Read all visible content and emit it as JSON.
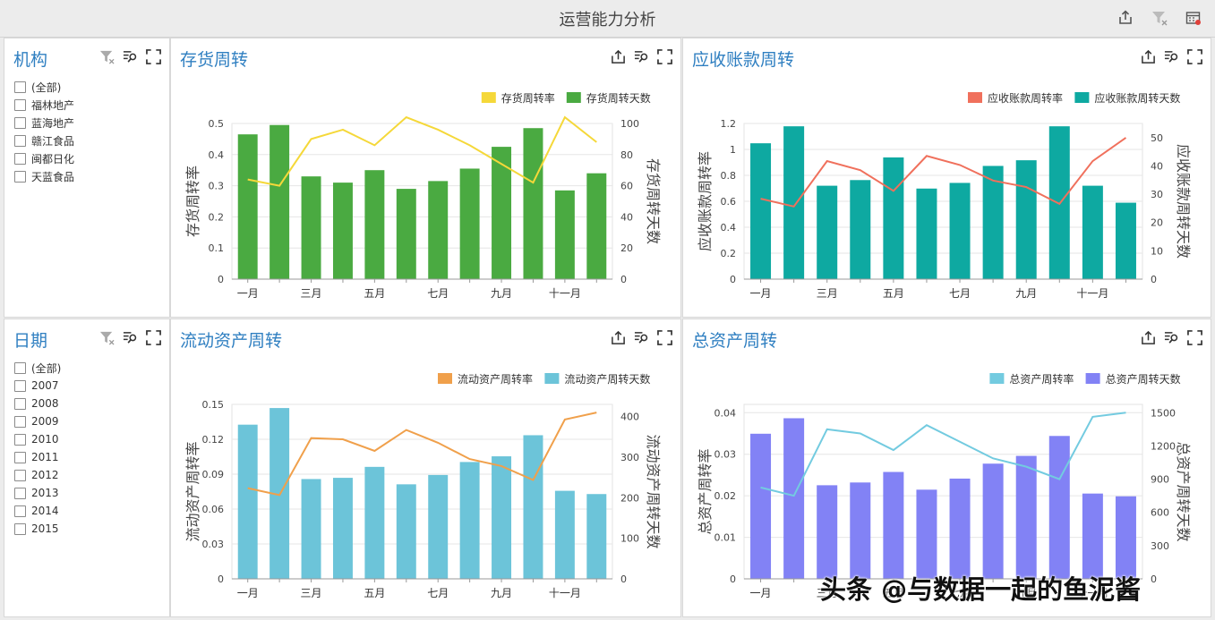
{
  "app": {
    "title": "运营能力分析"
  },
  "filters": [
    {
      "title": "机构",
      "items": [
        "(全部)",
        "福林地产",
        "蓝海地产",
        "赣江食品",
        "闽都日化",
        "天蓝食品"
      ]
    },
    {
      "title": "日期",
      "items": [
        "(全部)",
        "2007",
        "2008",
        "2009",
        "2010",
        "2011",
        "2012",
        "2013",
        "2014",
        "2015"
      ]
    }
  ],
  "watermark": "头条 @与数据一起的鱼泥酱",
  "chart_data": [
    {
      "type": "bar",
      "title": "存货周转",
      "categories": [
        "一月",
        "二月",
        "三月",
        "四月",
        "五月",
        "六月",
        "七月",
        "八月",
        "九月",
        "十月",
        "十一月",
        "十二月"
      ],
      "tick_labels": [
        "一月",
        "",
        "三月",
        "",
        "五月",
        "",
        "七月",
        "",
        "九月",
        "",
        "十一月",
        ""
      ],
      "series": [
        {
          "name": "存货周转率",
          "kind": "line",
          "axis": "left",
          "color": "#f5d839",
          "values": [
            0.32,
            0.3,
            0.45,
            0.48,
            0.43,
            0.52,
            0.48,
            0.43,
            0.37,
            0.31,
            0.52,
            0.44
          ]
        },
        {
          "name": "存货周转天数",
          "kind": "bar",
          "axis": "right",
          "color": "#4aaa41",
          "values": [
            93,
            99,
            66,
            62,
            70,
            58,
            63,
            71,
            85,
            97,
            57,
            68
          ]
        }
      ],
      "ylabel_left": "存货周转率",
      "ylim_left": [
        0,
        0.5
      ],
      "yticks_left": [
        0,
        0.1,
        0.2,
        0.3,
        0.4,
        0.5
      ],
      "ylabel_right": "存货周转天数",
      "ylim_right": [
        0,
        100
      ],
      "yticks_right": [
        0,
        20,
        40,
        60,
        80,
        100
      ],
      "legend_position": "top-right",
      "grid": true
    },
    {
      "type": "bar",
      "title": "应收账款周转",
      "categories": [
        "一月",
        "二月",
        "三月",
        "四月",
        "五月",
        "六月",
        "七月",
        "八月",
        "九月",
        "十月",
        "十一月",
        "十二月"
      ],
      "tick_labels": [
        "一月",
        "",
        "三月",
        "",
        "五月",
        "",
        "七月",
        "",
        "九月",
        "",
        "十一月",
        ""
      ],
      "series": [
        {
          "name": "应收账款周转率",
          "kind": "line",
          "axis": "left",
          "color": "#f0705c",
          "values": [
            0.62,
            0.56,
            0.91,
            0.84,
            0.68,
            0.95,
            0.88,
            0.76,
            0.71,
            0.58,
            0.91,
            1.09
          ]
        },
        {
          "name": "应收账款周转天数",
          "kind": "bar",
          "axis": "right",
          "color": "#0ea9a1",
          "values": [
            48,
            54,
            33,
            35,
            43,
            32,
            34,
            40,
            42,
            54,
            33,
            27
          ]
        }
      ],
      "ylabel_left": "应收账款周转率",
      "ylim_left": [
        0,
        1.2
      ],
      "yticks_left": [
        0,
        0.2,
        0.4,
        0.6,
        0.8,
        1,
        1.2
      ],
      "ylabel_right": "应收账款周转天数",
      "ylim_right": [
        0,
        55
      ],
      "yticks_right": [
        0,
        10,
        20,
        30,
        40,
        50
      ],
      "legend_position": "top-right",
      "grid": true
    },
    {
      "type": "bar",
      "title": "流动资产周转",
      "categories": [
        "一月",
        "二月",
        "三月",
        "四月",
        "五月",
        "六月",
        "七月",
        "八月",
        "九月",
        "十月",
        "十一月",
        "十二月"
      ],
      "tick_labels": [
        "一月",
        "",
        "三月",
        "",
        "五月",
        "",
        "七月",
        "",
        "九月",
        "",
        "十一月",
        ""
      ],
      "series": [
        {
          "name": "流动资产周转率",
          "kind": "line",
          "axis": "left",
          "color": "#f0a04b",
          "values": [
            0.078,
            0.072,
            0.121,
            0.12,
            0.11,
            0.128,
            0.117,
            0.103,
            0.097,
            0.085,
            0.137,
            0.143
          ]
        },
        {
          "name": "流动资产周转天数",
          "kind": "bar",
          "axis": "right",
          "color": "#6cc4d9",
          "values": [
            380,
            421,
            246,
            249,
            276,
            233,
            256,
            288,
            302,
            354,
            217,
            209
          ]
        }
      ],
      "ylabel_left": "流动资产周转率",
      "ylim_left": [
        0,
        0.15
      ],
      "yticks_left": [
        0,
        0.03,
        0.06,
        0.09,
        0.12,
        0.15
      ],
      "ylabel_right": "流动资产周转天数",
      "ylim_right": [
        0,
        430
      ],
      "yticks_right": [
        0,
        100,
        200,
        300,
        400
      ],
      "legend_position": "top-right",
      "grid": true
    },
    {
      "type": "bar",
      "title": "总资产周转",
      "categories": [
        "一月",
        "二月",
        "三月",
        "四月",
        "五月",
        "六月",
        "七月",
        "八月",
        "九月",
        "十月",
        "十一月",
        "十二月"
      ],
      "tick_labels": [
        "一月",
        "",
        "三月",
        "",
        "五月",
        "",
        "七月",
        "",
        "九月",
        "",
        "十一月",
        ""
      ],
      "series": [
        {
          "name": "总资产周转率",
          "kind": "line",
          "axis": "left",
          "color": "#73cbe0",
          "values": [
            0.022,
            0.02,
            0.036,
            0.035,
            0.031,
            0.037,
            0.033,
            0.029,
            0.027,
            0.024,
            0.039,
            0.04
          ]
        },
        {
          "name": "总资产周转天数",
          "kind": "bar",
          "axis": "right",
          "color": "#8282f5",
          "values": [
            1310,
            1450,
            845,
            870,
            965,
            805,
            905,
            1040,
            1110,
            1290,
            770,
            745
          ]
        }
      ],
      "ylabel_left": "总资产周转率",
      "ylim_left": [
        0,
        0.042
      ],
      "yticks_left": [
        0,
        0.01,
        0.02,
        0.03,
        0.04
      ],
      "ylabel_right": "总资产周转天数",
      "ylim_right": [
        0,
        1575
      ],
      "yticks_right": [
        0,
        300,
        600,
        900,
        1200,
        1500
      ],
      "legend_position": "top-right",
      "grid": true
    }
  ]
}
